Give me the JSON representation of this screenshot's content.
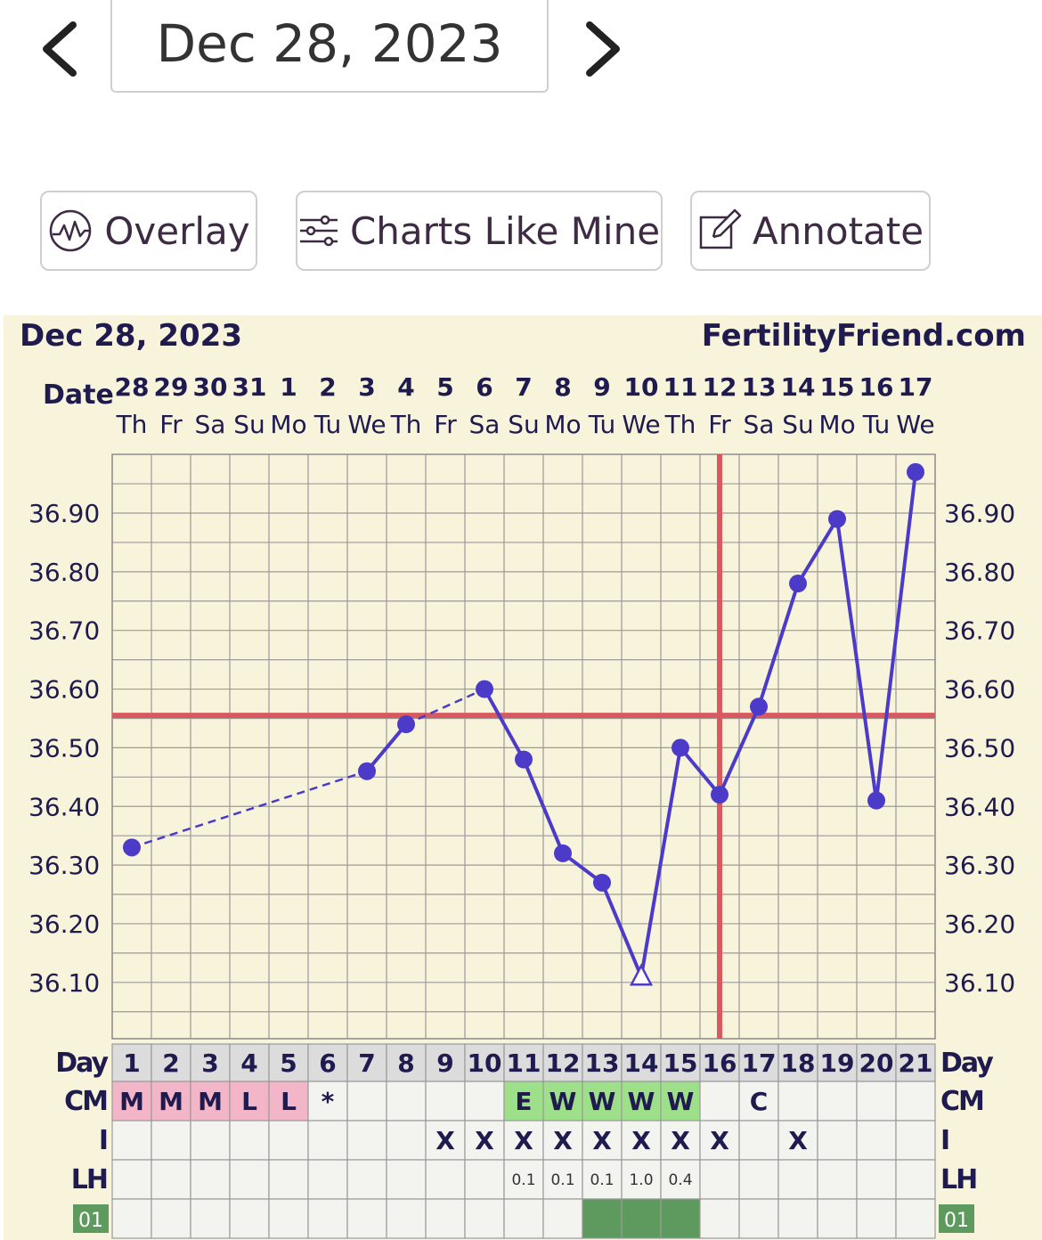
{
  "header": {
    "date_label": "Dec 28, 2023",
    "prev_icon": "chevron-left-icon",
    "next_icon": "chevron-right-icon"
  },
  "toolbar": {
    "overlay_label": "Overlay",
    "overlay_icon": "waveform-circle-icon",
    "charts_like_mine_label": "Charts Like Mine",
    "charts_like_mine_icon": "sliders-icon",
    "annotate_label": "Annotate",
    "annotate_icon": "edit-icon"
  },
  "chart_data": {
    "type": "line",
    "title": "Dec 28, 2023",
    "site_label": "FertilityFriend.com",
    "date_row_label": "Date",
    "dates": [
      "28",
      "29",
      "30",
      "31",
      "1",
      "2",
      "3",
      "4",
      "5",
      "6",
      "7",
      "8",
      "9",
      "10",
      "11",
      "12",
      "13",
      "14",
      "15",
      "16",
      "17"
    ],
    "weekdays": [
      "Th",
      "Fr",
      "Sa",
      "Su",
      "Mo",
      "Tu",
      "We",
      "Th",
      "Fr",
      "Sa",
      "Su",
      "Mo",
      "Tu",
      "We",
      "Th",
      "Fr",
      "Sa",
      "Su",
      "Mo",
      "Tu",
      "We"
    ],
    "ytick_labels": [
      "36.90",
      "36.80",
      "36.70",
      "36.60",
      "36.50",
      "36.40",
      "36.30",
      "36.20",
      "36.10"
    ],
    "ylim": [
      36.0,
      37.0
    ],
    "series": [
      {
        "values": [
          36.33,
          null,
          null,
          null,
          null,
          null,
          36.46,
          36.54,
          null,
          36.6,
          36.48,
          36.32,
          36.27,
          36.11,
          36.5,
          36.42,
          36.57,
          36.78,
          36.89,
          36.41,
          36.97
        ],
        "open_point_day": 14,
        "color": "#4b3bc8"
      }
    ],
    "coverline": 36.555,
    "ovulation_day": 16,
    "line_color": "#4b3bc8",
    "marker_color": "#d85a5f",
    "grid": true,
    "table": {
      "day_label": "Day",
      "days": [
        "1",
        "2",
        "3",
        "4",
        "5",
        "6",
        "7",
        "8",
        "9",
        "10",
        "11",
        "12",
        "13",
        "14",
        "15",
        "16",
        "17",
        "18",
        "19",
        "20",
        "21"
      ],
      "cm_label": "CM",
      "cm": [
        "M",
        "M",
        "M",
        "L",
        "L",
        "*",
        "",
        "",
        "",
        "",
        "E",
        "W",
        "W",
        "W",
        "W",
        "",
        "C",
        "",
        "",
        "",
        ""
      ],
      "i_label": "I",
      "i": [
        "",
        "",
        "",
        "",
        "",
        "",
        "",
        "",
        "X",
        "X",
        "X",
        "X",
        "X",
        "X",
        "X",
        "X",
        "",
        "X",
        "",
        "",
        ""
      ],
      "lh_label": "LH",
      "lh": [
        "",
        "",
        "",
        "",
        "",
        "",
        "",
        "",
        "",
        "",
        "0.1",
        "0.1",
        "0.1",
        "1.0",
        "0.4",
        "",
        "",
        "",
        "",
        "",
        ""
      ],
      "custom_label": "01",
      "custom": [
        false,
        false,
        false,
        false,
        false,
        false,
        false,
        false,
        false,
        false,
        false,
        false,
        true,
        true,
        true,
        false,
        false,
        false,
        false,
        false,
        false
      ]
    },
    "colors": {
      "menses": "#f3b6c8",
      "fertile_cm": "#9ee08a",
      "custom_fill": "#5e9a5e",
      "custom_label_bg": "#5e9a5e",
      "table_header": "#dcdcdc",
      "text_dark": "#1f1b4e",
      "panel_bg": "#f8f4db"
    }
  }
}
